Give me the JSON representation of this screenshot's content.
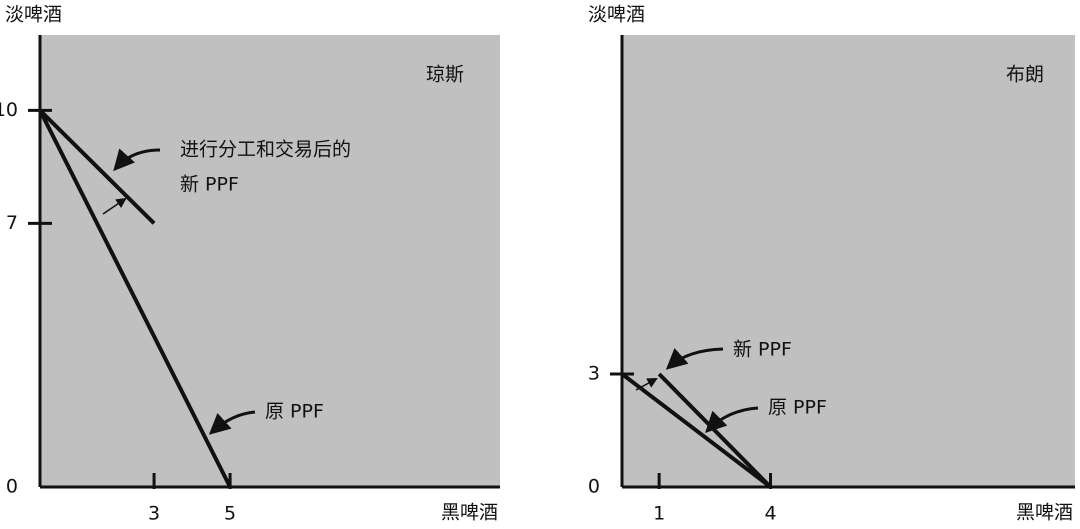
{
  "chart_data": [
    {
      "type": "line",
      "title": "琼斯",
      "x_label": "黑啤酒",
      "y_label": "淡啤酒",
      "xlim": [
        0,
        12.1
      ],
      "ylim": [
        0,
        12
      ],
      "xticks": [
        3,
        5
      ],
      "yticks": [
        0,
        7,
        10
      ],
      "annotation": "进行分工和交易后的",
      "color": "#111111",
      "background": "#c0c0c0",
      "series": [
        {
          "name": "原 PPF",
          "x": [
            0,
            5
          ],
          "y": [
            10,
            0
          ]
        },
        {
          "name": "新 PPF",
          "x": [
            0,
            3
          ],
          "y": [
            10,
            7
          ]
        }
      ]
    },
    {
      "type": "line",
      "title": "布朗",
      "x_label": "黑啤酒",
      "y_label": "淡啤酒",
      "xlim": [
        0,
        12.2
      ],
      "ylim": [
        0,
        12
      ],
      "xticks": [
        1,
        4
      ],
      "yticks": [
        0,
        3
      ],
      "color": "#111111",
      "background": "#c0c0c0",
      "series": [
        {
          "name": "原 PPF",
          "x": [
            0,
            4
          ],
          "y": [
            3,
            0
          ]
        },
        {
          "name": "新 PPF",
          "x": [
            1,
            4
          ],
          "y": [
            3,
            0
          ]
        }
      ]
    }
  ]
}
